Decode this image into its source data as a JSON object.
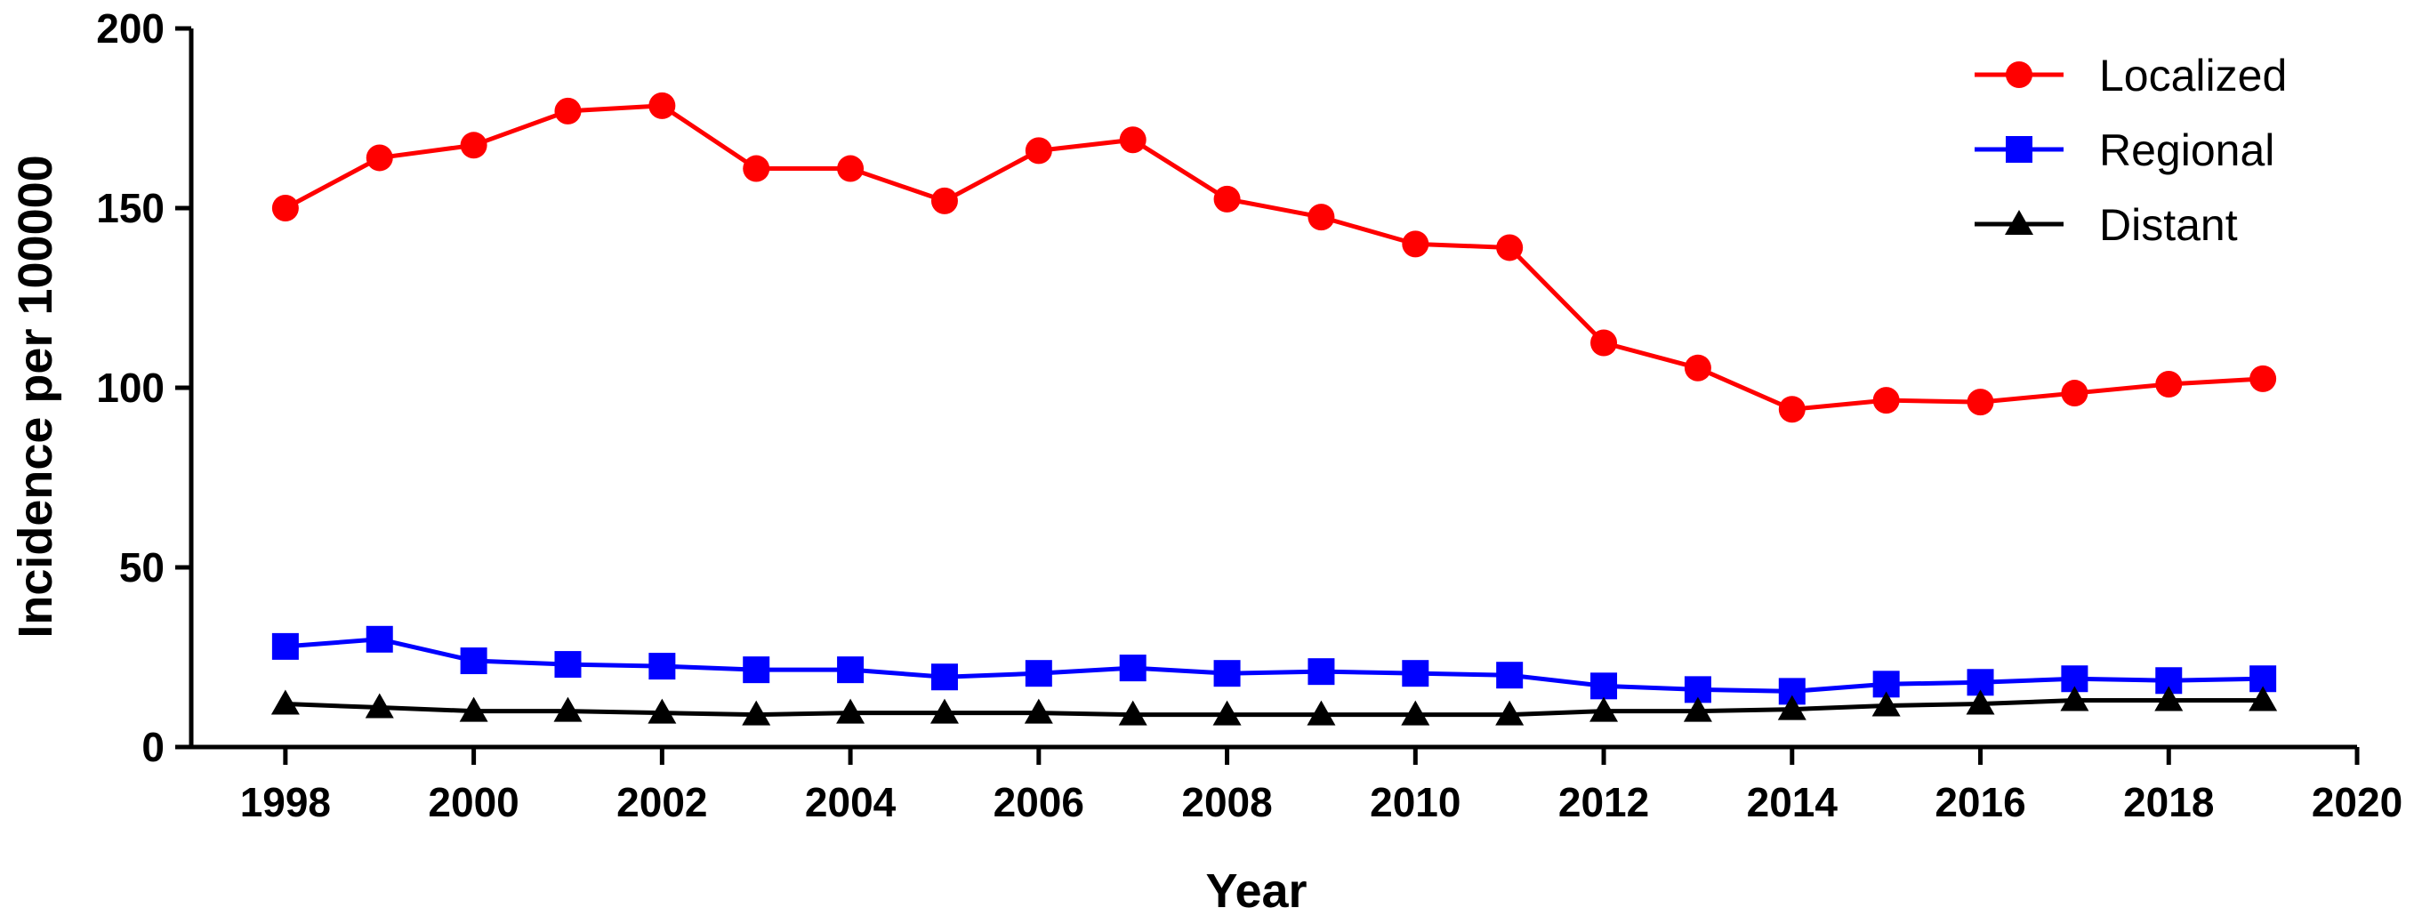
{
  "chart_data": {
    "type": "line",
    "title": "",
    "xlabel": "Year",
    "ylabel": "Incidence per 100000",
    "xlim": [
      1997,
      2020
    ],
    "ylim": [
      0,
      200
    ],
    "x_ticks": [
      1998,
      2000,
      2002,
      2004,
      2006,
      2008,
      2010,
      2012,
      2014,
      2016,
      2018,
      2020
    ],
    "y_ticks": [
      0,
      50,
      100,
      150,
      200
    ],
    "grid": false,
    "legend_position": "top-right",
    "x": [
      1998,
      1999,
      2000,
      2001,
      2002,
      2003,
      2004,
      2005,
      2006,
      2007,
      2008,
      2009,
      2010,
      2011,
      2012,
      2013,
      2014,
      2015,
      2016,
      2017,
      2018,
      2019
    ],
    "series": [
      {
        "name": "Localized",
        "color": "#ff0000",
        "marker": "circle",
        "values": [
          150,
          164,
          167.5,
          177,
          178.5,
          161,
          161,
          152,
          166,
          169,
          152.5,
          147.5,
          140,
          139,
          112.5,
          105.5,
          94,
          96.5,
          96,
          98.5,
          101,
          102.5
        ]
      },
      {
        "name": "Regional",
        "color": "#0000ff",
        "marker": "square",
        "values": [
          28,
          30,
          24,
          23,
          22.5,
          21.5,
          21.5,
          19.5,
          20.5,
          22,
          20.5,
          21,
          20.5,
          20,
          17,
          16,
          15.5,
          17.5,
          18,
          19,
          18.5,
          19
        ]
      },
      {
        "name": "Distant",
        "color": "#000000",
        "marker": "triangle",
        "values": [
          12,
          11,
          10,
          10,
          9.5,
          9,
          9.5,
          9.5,
          9.5,
          9,
          9,
          9,
          9,
          9,
          10,
          10,
          10.5,
          11.5,
          12,
          13,
          13,
          13
        ]
      }
    ]
  }
}
